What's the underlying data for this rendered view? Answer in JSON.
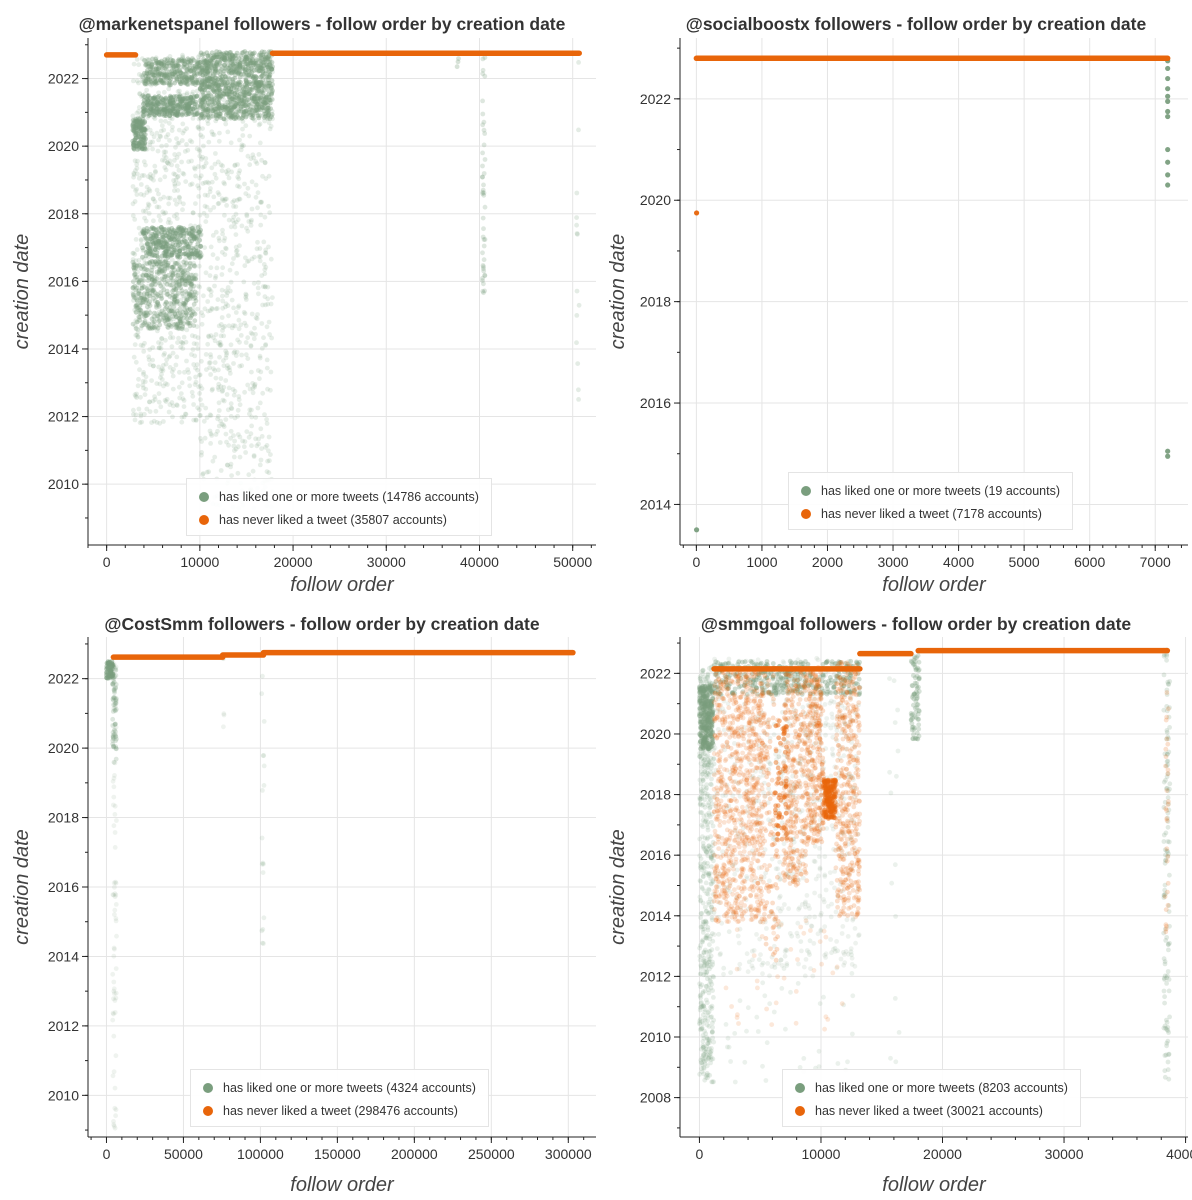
{
  "chart_data": [
    {
      "type": "scatter",
      "title": "@markenetspanel followers - follow order by creation date",
      "xlabel": "follow order",
      "ylabel": "creation date",
      "xlim": [
        -2000,
        52500
      ],
      "ylim": [
        2008.2,
        2023.2
      ],
      "xticks": [
        0,
        10000,
        20000,
        30000,
        40000,
        50000
      ],
      "xtick_labels": [
        "0",
        "10000",
        "20000",
        "30000",
        "40000",
        "50000"
      ],
      "yticks": [
        2010,
        2012,
        2014,
        2016,
        2018,
        2020,
        2022
      ],
      "ytick_labels": [
        "2010",
        "2012",
        "2014",
        "2016",
        "2018",
        "2020",
        "2022"
      ],
      "legend_position": "bottom-center",
      "series": [
        {
          "name": "has liked one or more tweets (14786 accounts)",
          "color": "#7a9e7e",
          "clusters": [
            {
              "x": [
                2800,
                10000
              ],
              "y": [
                2011.8,
                2022.7
              ],
              "count": 700,
              "opacity": 0.18
            },
            {
              "x": [
                2800,
                4200
              ],
              "y": [
                2019.9,
                2020.8
              ],
              "count": 130,
              "opacity": 0.45
            },
            {
              "x": [
                4000,
                10000
              ],
              "y": [
                2021.8,
                2022.6
              ],
              "count": 260,
              "opacity": 0.4
            },
            {
              "x": [
                3800,
                9800
              ],
              "y": [
                2020.9,
                2021.5
              ],
              "count": 260,
              "opacity": 0.45
            },
            {
              "x": [
                3800,
                10200
              ],
              "y": [
                2016.7,
                2017.6
              ],
              "count": 260,
              "opacity": 0.45
            },
            {
              "x": [
                2800,
                9600
              ],
              "y": [
                2014.6,
                2016.6
              ],
              "count": 420,
              "opacity": 0.35
            },
            {
              "x": [
                10000,
                17800
              ],
              "y": [
                2009.2,
                2022.7
              ],
              "count": 650,
              "opacity": 0.18
            },
            {
              "x": [
                10000,
                17800
              ],
              "y": [
                2020.8,
                2022.8
              ],
              "count": 900,
              "opacity": 0.4
            },
            {
              "x": [
                40300,
                40600
              ],
              "y": [
                2015.5,
                2022.8
              ],
              "count": 45,
              "opacity": 0.25
            },
            {
              "x": [
                50400,
                50700
              ],
              "y": [
                2012.3,
                2022.8
              ],
              "count": 14,
              "opacity": 0.2
            },
            {
              "x": [
                37000,
                38000
              ],
              "y": [
                2022.3,
                2022.6
              ],
              "count": 3,
              "opacity": 0.3
            }
          ]
        },
        {
          "name": "has never liked a tweet (35807 accounts)",
          "color": "#e8650a",
          "bands": [
            {
              "x": [
                0,
                3100
              ],
              "y": 2022.7
            },
            {
              "x": [
                17800,
                50700
              ],
              "y": 2022.75
            }
          ]
        }
      ]
    },
    {
      "type": "scatter",
      "title": "@socialboostx followers - follow order by creation date",
      "xlabel": "follow order",
      "ylabel": "creation date",
      "xlim": [
        -250,
        7500
      ],
      "ylim": [
        2013.2,
        2023.2
      ],
      "xticks": [
        0,
        1000,
        2000,
        3000,
        4000,
        5000,
        6000,
        7000
      ],
      "xtick_labels": [
        "0",
        "1000",
        "2000",
        "3000",
        "4000",
        "5000",
        "6000",
        "7000"
      ],
      "yticks": [
        2014,
        2016,
        2018,
        2020,
        2022
      ],
      "ytick_labels": [
        "2014",
        "2016",
        "2018",
        "2020",
        "2022"
      ],
      "legend_position": "bottom-center",
      "series": [
        {
          "name": "has liked one or more tweets (19 accounts)",
          "color": "#7a9e7e",
          "points": [
            [
              3,
              2013.5
            ],
            [
              7190,
              2014.95
            ],
            [
              7190,
              2015.05
            ],
            [
              7190,
              2020.3
            ],
            [
              7190,
              2020.5
            ],
            [
              7190,
              2020.75
            ],
            [
              7190,
              2021.0
            ],
            [
              7190,
              2021.65
            ],
            [
              7190,
              2021.75
            ],
            [
              7190,
              2021.95
            ],
            [
              7190,
              2022.05
            ],
            [
              7190,
              2022.2
            ],
            [
              7190,
              2022.4
            ],
            [
              7190,
              2022.6
            ],
            [
              7190,
              2022.75
            ]
          ]
        },
        {
          "name": "has never liked a tweet (7178 accounts)",
          "color": "#e8650a",
          "bands": [
            {
              "x": [
                0,
                7190
              ],
              "y": 2022.8
            }
          ],
          "points": [
            [
              3,
              2019.75
            ]
          ]
        }
      ]
    },
    {
      "type": "scatter",
      "title": "@CostSmm followers - follow order by creation date",
      "xlabel": "follow order",
      "ylabel": "creation date",
      "xlim": [
        -12000,
        318000
      ],
      "ylim": [
        2008.8,
        2023.2
      ],
      "xticks": [
        0,
        50000,
        100000,
        150000,
        200000,
        250000,
        300000
      ],
      "xtick_labels": [
        "0",
        "50000",
        "100000",
        "150000",
        "200000",
        "250000",
        "300000"
      ],
      "yticks": [
        2010,
        2012,
        2014,
        2016,
        2018,
        2020,
        2022
      ],
      "ytick_labels": [
        "2010",
        "2012",
        "2014",
        "2016",
        "2018",
        "2020",
        "2022"
      ],
      "legend_position": "bottom-center",
      "series": [
        {
          "name": "has liked one or more tweets (4324 accounts)",
          "color": "#7a9e7e",
          "clusters": [
            {
              "x": [
                0,
                4500
              ],
              "y": [
                2022.0,
                2022.5
              ],
              "count": 60,
              "opacity": 0.5
            },
            {
              "x": [
                4000,
                6500
              ],
              "y": [
                2009.0,
                2022.5
              ],
              "count": 70,
              "opacity": 0.12
            },
            {
              "x": [
                4000,
                6500
              ],
              "y": [
                2019.5,
                2022.3
              ],
              "count": 60,
              "opacity": 0.25
            },
            {
              "x": [
                100500,
                102500
              ],
              "y": [
                2014.3,
                2022.7
              ],
              "count": 18,
              "opacity": 0.15
            },
            {
              "x": [
                75500,
                76500
              ],
              "y": [
                2020.4,
                2022.6
              ],
              "count": 5,
              "opacity": 0.12
            }
          ]
        },
        {
          "name": "has never liked a tweet (298476 accounts)",
          "color": "#e8650a",
          "bands": [
            {
              "x": [
                4500,
                75500
              ],
              "y": 2022.62
            },
            {
              "x": [
                75500,
                102000
              ],
              "y": 2022.68
            },
            {
              "x": [
                102000,
                303000
              ],
              "y": 2022.75
            }
          ]
        }
      ]
    },
    {
      "type": "scatter",
      "title": "@smmgoal followers - follow order by creation date",
      "xlabel": "follow order",
      "ylabel": "creation date",
      "xlim": [
        -1600,
        40200
      ],
      "ylim": [
        2006.7,
        2023.2
      ],
      "xticks": [
        0,
        10000,
        20000,
        30000,
        40000
      ],
      "xtick_labels": [
        "0",
        "10000",
        "20000",
        "30000",
        "40000"
      ],
      "yticks": [
        2008,
        2010,
        2012,
        2014,
        2016,
        2018,
        2020,
        2022
      ],
      "ytick_labels": [
        "2008",
        "2010",
        "2012",
        "2014",
        "2016",
        "2018",
        "2020",
        "2022"
      ],
      "legend_position": "bottom-center",
      "series": [
        {
          "name": "has liked one or more tweets (8203 accounts)",
          "color": "#7a9e7e",
          "clusters": [
            {
              "x": [
                0,
                1200
              ],
              "y": [
                2008.5,
                2022.3
              ],
              "count": 500,
              "opacity": 0.18
            },
            {
              "x": [
                0,
                1100
              ],
              "y": [
                2019.5,
                2021.6
              ],
              "count": 300,
              "opacity": 0.4
            },
            {
              "x": [
                1200,
                13200
              ],
              "y": [
                2012.0,
                2022.5
              ],
              "count": 550,
              "opacity": 0.13
            },
            {
              "x": [
                1200,
                13200
              ],
              "y": [
                2021.3,
                2022.4
              ],
              "count": 400,
              "opacity": 0.35
            },
            {
              "x": [
                17400,
                18100
              ],
              "y": [
                2019.8,
                2022.6
              ],
              "count": 80,
              "opacity": 0.3
            },
            {
              "x": [
                15600,
                16500
              ],
              "y": [
                2008.8,
                2022.3
              ],
              "count": 15,
              "opacity": 0.15
            },
            {
              "x": [
                38200,
                38700
              ],
              "y": [
                2008.5,
                2022.8
              ],
              "count": 120,
              "opacity": 0.22
            },
            {
              "x": [
                1500,
                13000
              ],
              "y": [
                2008.5,
                2013.5
              ],
              "count": 60,
              "opacity": 0.15
            }
          ]
        },
        {
          "name": "has never liked a tweet (30021 accounts)",
          "color": "#e8650a",
          "bands": [
            {
              "x": [
                1200,
                13200
              ],
              "y": 2022.15
            },
            {
              "x": [
                13200,
                17400
              ],
              "y": 2022.65
            },
            {
              "x": [
                18000,
                38500
              ],
              "y": 2022.75
            }
          ],
          "clusters": [
            {
              "x": [
                1200,
                5400
              ],
              "y": [
                2013.8,
                2022.2
              ],
              "count": 900,
              "opacity": 0.18
            },
            {
              "x": [
                5400,
                6500
              ],
              "y": [
                2012.5,
                2022.2
              ],
              "count": 90,
              "opacity": 0.22
            },
            {
              "x": [
                6900,
                8900
              ],
              "y": [
                2015.0,
                2022.2
              ],
              "count": 350,
              "opacity": 0.2
            },
            {
              "x": [
                8900,
                10200
              ],
              "y": [
                2016.4,
                2022.2
              ],
              "count": 250,
              "opacity": 0.22
            },
            {
              "x": [
                10200,
                11200
              ],
              "y": [
                2017.2,
                2018.5
              ],
              "count": 180,
              "opacity": 0.45
            },
            {
              "x": [
                11200,
                13200
              ],
              "y": [
                2014.0,
                2022.4
              ],
              "count": 420,
              "opacity": 0.2
            },
            {
              "x": [
                6200,
                7200
              ],
              "y": [
                2016.5,
                2020.5
              ],
              "count": 60,
              "opacity": 0.45
            },
            {
              "x": [
                38300,
                38600
              ],
              "y": [
                2013.0,
                2022.8
              ],
              "count": 30,
              "opacity": 0.2
            },
            {
              "x": [
                2000,
                13000
              ],
              "y": [
                2010.0,
                2014.0
              ],
              "count": 40,
              "opacity": 0.15
            }
          ]
        }
      ]
    }
  ]
}
